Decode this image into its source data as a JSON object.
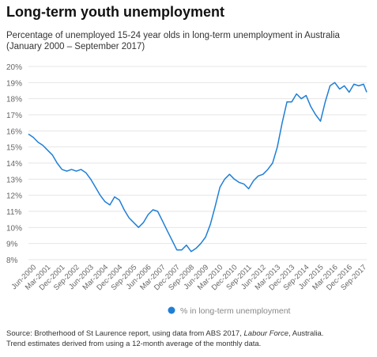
{
  "title": "Long-term youth unemployment",
  "subtitle": "Percentage of unemployed 15-24 year olds in long-term unemployment in Australia (January 2000 – September 2017)",
  "footer": {
    "source_prefix": "Source: Brotherhood of St Laurence report, using data from ABS 2017, ",
    "source_italic": "Labour Force",
    "source_suffix": ", Australia.",
    "note": "Trend estimates derived from using a 12-month average of the monthly data."
  },
  "colors": {
    "series": "#1f7fd6",
    "grid": "#e6e6e6",
    "text": "#666666"
  },
  "chart_data": {
    "type": "line",
    "title": "Long-term youth unemployment",
    "xlabel": "",
    "ylabel": "",
    "ylim": [
      8,
      20
    ],
    "yticks": [
      "8%",
      "9%",
      "10%",
      "11%",
      "12%",
      "13%",
      "14%",
      "15%",
      "16%",
      "17%",
      "18%",
      "19%",
      "20%"
    ],
    "xticks": [
      "Jun-2000",
      "Mar-2001",
      "Dec-2001",
      "Sep-2002",
      "Jun-2003",
      "Mar-2004",
      "Dec-2004",
      "Sep-2005",
      "Jun-2006",
      "Mar-2007",
      "Dec-2007",
      "Sep-2008",
      "Jun-2009",
      "Mar-2010",
      "Dec-2010",
      "Sep-2011",
      "Jun-2012",
      "Mar-2013",
      "Dec-2013",
      "Sep-2014",
      "Jun-2015",
      "Mar-2016",
      "Dec-2016",
      "Sep-2017"
    ],
    "grid": "horizontal",
    "legend_position": "bottom",
    "series": [
      {
        "name": "% in long-term unemployment",
        "x": [
          "2000-01",
          "2000-04",
          "2000-07",
          "2000-10",
          "2001-01",
          "2001-04",
          "2001-07",
          "2001-10",
          "2002-01",
          "2002-04",
          "2002-07",
          "2002-10",
          "2003-01",
          "2003-04",
          "2003-07",
          "2003-10",
          "2004-01",
          "2004-04",
          "2004-07",
          "2004-10",
          "2005-01",
          "2005-04",
          "2005-07",
          "2005-10",
          "2006-01",
          "2006-04",
          "2006-07",
          "2006-10",
          "2007-01",
          "2007-04",
          "2007-07",
          "2007-10",
          "2008-01",
          "2008-04",
          "2008-07",
          "2008-10",
          "2009-01",
          "2009-04",
          "2009-07",
          "2009-10",
          "2010-01",
          "2010-04",
          "2010-07",
          "2010-10",
          "2011-01",
          "2011-04",
          "2011-07",
          "2011-10",
          "2012-01",
          "2012-04",
          "2012-07",
          "2012-10",
          "2013-01",
          "2013-04",
          "2013-07",
          "2013-10",
          "2014-01",
          "2014-04",
          "2014-07",
          "2014-10",
          "2015-01",
          "2015-04",
          "2015-07",
          "2015-10",
          "2016-01",
          "2016-04",
          "2016-07",
          "2016-10",
          "2017-01",
          "2017-04",
          "2017-07",
          "2017-09"
        ],
        "values": [
          15.8,
          15.6,
          15.3,
          15.1,
          14.8,
          14.5,
          14.0,
          13.6,
          13.5,
          13.6,
          13.5,
          13.6,
          13.4,
          13.0,
          12.5,
          12.0,
          11.6,
          11.4,
          11.9,
          11.7,
          11.1,
          10.6,
          10.3,
          10.0,
          10.3,
          10.8,
          11.1,
          11.0,
          10.4,
          9.8,
          9.2,
          8.6,
          8.6,
          8.9,
          8.5,
          8.7,
          9.0,
          9.4,
          10.2,
          11.3,
          12.5,
          13.0,
          13.3,
          13.0,
          12.8,
          12.7,
          12.4,
          12.9,
          13.2,
          13.3,
          13.6,
          14.0,
          15.0,
          16.5,
          17.8,
          17.8,
          18.3,
          18.0,
          18.2,
          17.5,
          17.0,
          16.6,
          17.8,
          18.8,
          19.0,
          18.6,
          18.8,
          18.4,
          18.9,
          18.8,
          18.9,
          18.4
        ]
      }
    ]
  }
}
